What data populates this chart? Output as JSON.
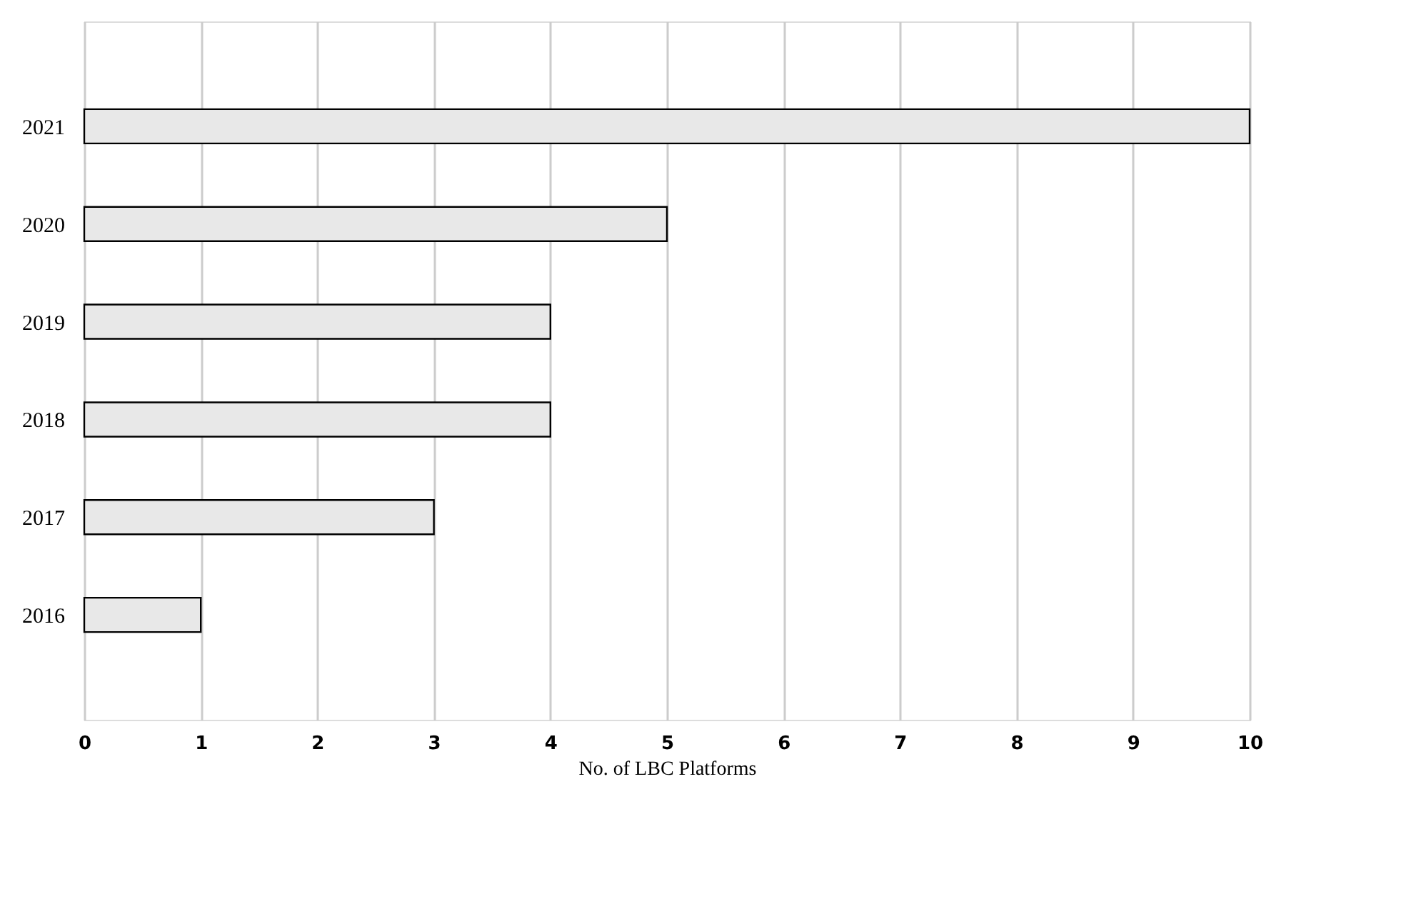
{
  "chart_data": {
    "type": "bar",
    "orientation": "horizontal",
    "xlabel": "No. of LBC Platforms",
    "categories": [
      "2021",
      "2020",
      "2019",
      "2018",
      "2017",
      "2016"
    ],
    "values": [
      10,
      5,
      4,
      4,
      3,
      1
    ],
    "color": "#e8e8e8",
    "xlim": [
      0,
      10
    ],
    "xticks": [
      0,
      1,
      2,
      3,
      4,
      5,
      6,
      7,
      8,
      9,
      10
    ],
    "grid": "x"
  }
}
